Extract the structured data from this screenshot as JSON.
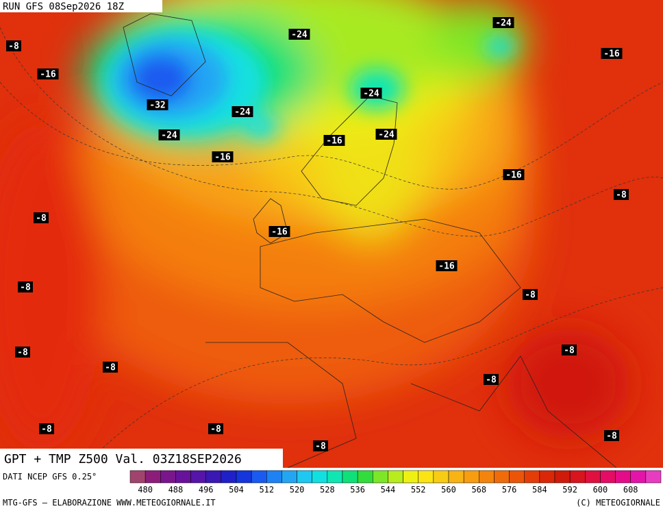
{
  "header": {
    "run": "RUN GFS 08Sep2026 18Z"
  },
  "footer": {
    "title": "GPT + TMP Z500 Val. 03Z18SEP2026",
    "source": "DATI NCEP GFS 0.25°",
    "credit": "MTG-GFS — ELABORAZIONE WWW.METEOGIORNALE.IT",
    "copyright": "(C) METEOGIORNALE"
  },
  "isotherm_labels": [
    "-8",
    "-16",
    "-32",
    "-24",
    "-24",
    "-16",
    "-24",
    "-24",
    "-16",
    "-24",
    "-16",
    "-24",
    "-16",
    "-8",
    "-8",
    "-16",
    "-16",
    "-8",
    "-8",
    "-8",
    "-8",
    "-8",
    "-8",
    "-8",
    "-8",
    "-8",
    "-8"
  ],
  "legend": {
    "labels": [
      480,
      488,
      496,
      504,
      512,
      520,
      528,
      536,
      544,
      552,
      560,
      568,
      576,
      584,
      592,
      600,
      608
    ],
    "colors": [
      "#a0446e",
      "#8c1e7a",
      "#7a168c",
      "#68129c",
      "#5614a8",
      "#3a18b4",
      "#2020c8",
      "#1436dc",
      "#1a5af0",
      "#1e82f4",
      "#22a6f4",
      "#1ec8f0",
      "#12e0e0",
      "#10e6b4",
      "#10e07a",
      "#32dc3c",
      "#7ee628",
      "#b8ec1e",
      "#eef014",
      "#fce414",
      "#f8cc14",
      "#f8b414",
      "#f89c10",
      "#f4840c",
      "#f06c0a",
      "#ec5408",
      "#e63c08",
      "#dc2608",
      "#d01a0a",
      "#d8141e",
      "#e01040",
      "#e40c64",
      "#e40c88",
      "#e414a8",
      "#e83cc0"
    ]
  }
}
